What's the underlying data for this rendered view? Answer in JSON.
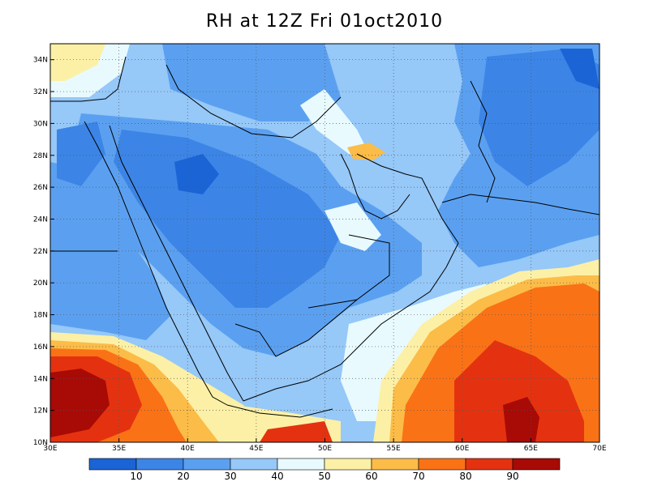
{
  "title": "RH at 12Z Fri 01oct2010",
  "map": {
    "lon_range": [
      30,
      70
    ],
    "lat_range": [
      10,
      35
    ],
    "lon_ticks": [
      {
        "value": 30,
        "label": "30E"
      },
      {
        "value": 35,
        "label": "35E"
      },
      {
        "value": 40,
        "label": "40E"
      },
      {
        "value": 45,
        "label": "45E"
      },
      {
        "value": 50,
        "label": "50E"
      },
      {
        "value": 55,
        "label": "55E"
      },
      {
        "value": 60,
        "label": "60E"
      },
      {
        "value": 65,
        "label": "65E"
      },
      {
        "value": 70,
        "label": "70E"
      }
    ],
    "lat_ticks": [
      {
        "value": 10,
        "label": "10N"
      },
      {
        "value": 12,
        "label": "12N"
      },
      {
        "value": 14,
        "label": "14N"
      },
      {
        "value": 16,
        "label": "16N"
      },
      {
        "value": 18,
        "label": "18N"
      },
      {
        "value": 20,
        "label": "20N"
      },
      {
        "value": 22,
        "label": "22N"
      },
      {
        "value": 24,
        "label": "24N"
      },
      {
        "value": 26,
        "label": "26N"
      },
      {
        "value": 28,
        "label": "28N"
      },
      {
        "value": 30,
        "label": "30N"
      },
      {
        "value": 32,
        "label": "32N"
      },
      {
        "value": 34,
        "label": "34N"
      }
    ],
    "grid": true
  },
  "colorbar": {
    "colors": [
      "#1a64d6",
      "#3c85e6",
      "#5ba0f0",
      "#96c8f8",
      "#e8fafe",
      "#fcf0a6",
      "#fcbc48",
      "#fa7216",
      "#e43210",
      "#a80a06"
    ],
    "labels": [
      "10",
      "20",
      "30",
      "40",
      "50",
      "60",
      "70",
      "80",
      "90"
    ]
  },
  "colors": {
    "base_field": "#96c8f8",
    "coast": "#000000"
  }
}
